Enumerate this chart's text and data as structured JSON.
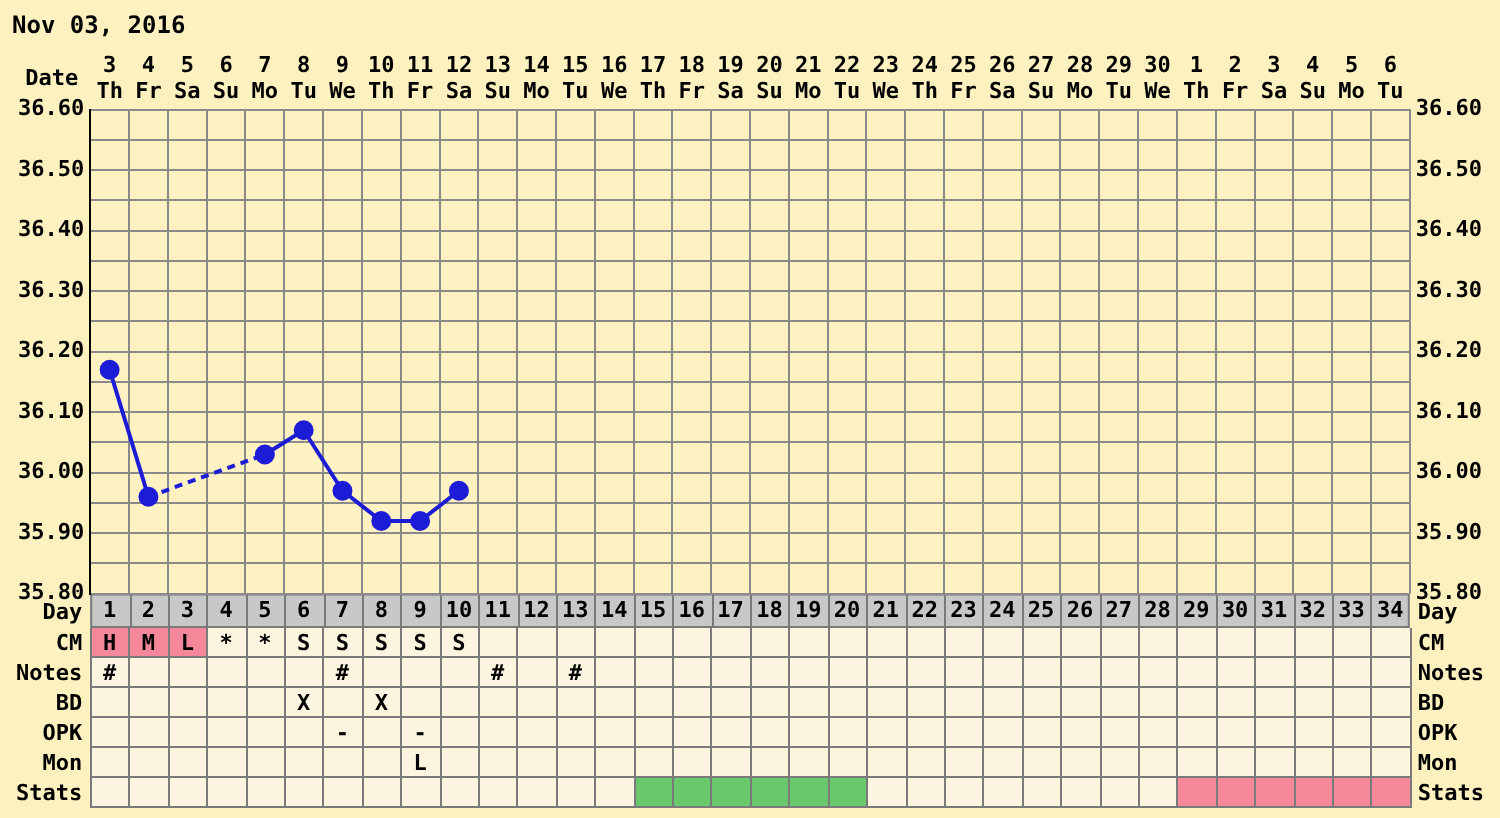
{
  "chart_data": [
    {
      "type": "line",
      "title": "Nov 03, 2016",
      "xlabel": "Date",
      "categories": [
        "3 Th",
        "4 Fr",
        "5 Sa",
        "6 Su",
        "7 Mo",
        "8 Tu",
        "9 We",
        "10 Th",
        "11 Fr",
        "12 Sa",
        "13 Su",
        "14 Mo",
        "15 Tu",
        "16 We",
        "17 Th",
        "18 Fr",
        "19 Sa",
        "20 Su",
        "21 Mo",
        "22 Tu",
        "23 We",
        "24 Th",
        "25 Fr",
        "26 Sa",
        "27 Su",
        "28 Mo",
        "29 Tu",
        "30 We",
        "1 Th",
        "2 Fr",
        "3 Sa",
        "4 Su",
        "5 Mo",
        "6 Tu"
      ],
      "series": [
        {
          "color": "#1c1cd6",
          "values": [
            36.17,
            35.96,
            null,
            null,
            36.03,
            36.07,
            35.97,
            35.92,
            35.92,
            35.97,
            null,
            null,
            null,
            null,
            null,
            null,
            null,
            null,
            null,
            null,
            null,
            null,
            null,
            null,
            null,
            null,
            null,
            null,
            null,
            null,
            null,
            null,
            null,
            null
          ]
        }
      ],
      "ylim": [
        35.8,
        36.6
      ],
      "yticks": [
        {
          "value": 35.8,
          "label": "35.80"
        },
        {
          "value": 35.85,
          "label": null
        },
        {
          "value": 35.9,
          "label": "35.90"
        },
        {
          "value": 35.95,
          "label": null
        },
        {
          "value": 36.0,
          "label": "36.00"
        },
        {
          "value": 36.05,
          "label": null
        },
        {
          "value": 36.1,
          "label": "36.10"
        },
        {
          "value": 36.15,
          "label": null
        },
        {
          "value": 36.2,
          "label": "36.20"
        },
        {
          "value": 36.25,
          "label": null
        },
        {
          "value": 36.3,
          "label": "36.30"
        },
        {
          "value": 36.35,
          "label": null
        },
        {
          "value": 36.4,
          "label": "36.40"
        },
        {
          "value": 36.45,
          "label": null
        },
        {
          "value": 36.5,
          "label": "36.50"
        },
        {
          "value": 36.55,
          "label": null
        },
        {
          "value": 36.6,
          "label": "36.60"
        }
      ],
      "y2lim": [
        35.8,
        36.6
      ],
      "y2ticks": [
        {
          "value": 35.8,
          "label": "35.80"
        },
        {
          "value": 35.9,
          "label": "35.90"
        },
        {
          "value": 36.0,
          "label": "36.00"
        },
        {
          "value": 36.1,
          "label": "36.10"
        },
        {
          "value": 36.2,
          "label": "36.20"
        },
        {
          "value": 36.3,
          "label": "36.30"
        },
        {
          "value": 36.4,
          "label": "36.40"
        },
        {
          "value": 36.5,
          "label": "36.50"
        },
        {
          "value": 36.6,
          "label": "36.60"
        }
      ],
      "x2label": "Day",
      "x2lim": [
        0.5,
        34.5
      ],
      "x2ticks": [
        1,
        2,
        3,
        4,
        5,
        6,
        7,
        8,
        9,
        10,
        11,
        12,
        13,
        14,
        15,
        16,
        17,
        18,
        19,
        20,
        21,
        22,
        23,
        24,
        25,
        26,
        27,
        28,
        29,
        30,
        31,
        32,
        33,
        34
      ],
      "grid": true,
      "legend": false,
      "marker": "circle",
      "line_style": "solid"
    },
    {
      "type": "other",
      "y_categories": [
        "CM",
        "Notes",
        "BD",
        "OPK",
        "Mon",
        "Stats"
      ],
      "y2_categories": [
        "CM",
        "Notes",
        "BD",
        "OPK",
        "Mon",
        "Stats"
      ],
      "cell_labels": [
        [
          "H",
          "M",
          "L",
          "*",
          "*",
          "S",
          "S",
          "S",
          "S",
          "S",
          null,
          null,
          null,
          null,
          null,
          null,
          null,
          null,
          null,
          null,
          null,
          null,
          null,
          null,
          null,
          null,
          null,
          null,
          null,
          null,
          null,
          null,
          null,
          null
        ],
        [
          "#",
          null,
          null,
          null,
          null,
          null,
          "#",
          null,
          null,
          null,
          "#",
          null,
          "#",
          null,
          null,
          null,
          null,
          null,
          null,
          null,
          null,
          null,
          null,
          null,
          null,
          null,
          null,
          null,
          null,
          null,
          null,
          null,
          null,
          null
        ],
        [
          null,
          null,
          null,
          null,
          null,
          "X",
          null,
          "X",
          null,
          null,
          null,
          null,
          null,
          null,
          null,
          null,
          null,
          null,
          null,
          null,
          null,
          null,
          null,
          null,
          null,
          null,
          null,
          null,
          null,
          null,
          null,
          null,
          null,
          null
        ],
        [
          null,
          null,
          null,
          null,
          null,
          null,
          "-",
          null,
          "-",
          null,
          null,
          null,
          null,
          null,
          null,
          null,
          null,
          null,
          null,
          null,
          null,
          null,
          null,
          null,
          null,
          null,
          null,
          null,
          null,
          null,
          null,
          null,
          null,
          null
        ],
        [
          null,
          null,
          null,
          null,
          null,
          null,
          null,
          null,
          "L",
          null,
          null,
          null,
          null,
          null,
          null,
          null,
          null,
          null,
          null,
          null,
          null,
          null,
          null,
          null,
          null,
          null,
          null,
          null,
          null,
          null,
          null,
          null,
          null,
          null
        ],
        [
          null,
          null,
          null,
          null,
          null,
          null,
          null,
          null,
          null,
          null,
          null,
          null,
          null,
          null,
          null,
          null,
          null,
          null,
          null,
          null,
          null,
          null,
          null,
          null,
          null,
          null,
          null,
          null,
          null,
          null,
          null,
          null,
          null,
          null
        ]
      ],
      "colors": [
        [
          "#f4879a",
          "#f4879a",
          "#f4879a",
          null,
          null,
          null,
          null,
          null,
          null,
          null,
          null,
          null,
          null,
          null,
          null,
          null,
          null,
          null,
          null,
          null,
          null,
          null,
          null,
          null,
          null,
          null,
          null,
          null,
          null,
          null,
          null,
          null,
          null,
          null
        ],
        [
          null,
          null,
          null,
          null,
          null,
          null,
          null,
          null,
          null,
          null,
          null,
          null,
          null,
          null,
          null,
          null,
          null,
          null,
          null,
          null,
          null,
          null,
          null,
          null,
          null,
          null,
          null,
          null,
          null,
          null,
          null,
          null,
          null,
          null
        ],
        [
          null,
          null,
          null,
          null,
          null,
          null,
          null,
          null,
          null,
          null,
          null,
          null,
          null,
          null,
          null,
          null,
          null,
          null,
          null,
          null,
          null,
          null,
          null,
          null,
          null,
          null,
          null,
          null,
          null,
          null,
          null,
          null,
          null,
          null
        ],
        [
          null,
          null,
          null,
          null,
          null,
          null,
          null,
          null,
          null,
          null,
          null,
          null,
          null,
          null,
          null,
          null,
          null,
          null,
          null,
          null,
          null,
          null,
          null,
          null,
          null,
          null,
          null,
          null,
          null,
          null,
          null,
          null,
          null,
          null
        ],
        [
          null,
          null,
          null,
          null,
          null,
          null,
          null,
          null,
          null,
          null,
          null,
          null,
          null,
          null,
          null,
          null,
          null,
          null,
          null,
          null,
          null,
          null,
          null,
          null,
          null,
          null,
          null,
          null,
          null,
          null,
          null,
          null,
          null,
          null
        ],
        [
          null,
          null,
          null,
          null,
          null,
          null,
          null,
          null,
          null,
          null,
          null,
          null,
          null,
          null,
          "#6cc86c",
          "#6cc86c",
          "#6cc86c",
          "#6cc86c",
          "#6cc86c",
          "#6cc86c",
          null,
          null,
          null,
          null,
          null,
          null,
          null,
          null,
          "#f4879a",
          "#f4879a",
          "#f4879a",
          "#f4879a",
          "#f4879a",
          "#f4879a"
        ]
      ]
    }
  ]
}
